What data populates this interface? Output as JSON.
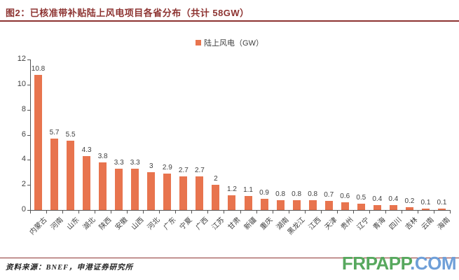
{
  "header": {
    "title": "图2：已核准带补贴陆上风电项目各省分布（共计 58GW）"
  },
  "legend": {
    "label": "陆上风电（GW）"
  },
  "chart_data": {
    "type": "bar",
    "title": "已核准带补贴陆上风电项目各省分布（共计 58GW）",
    "xlabel": "",
    "ylabel": "",
    "ylim": [
      0,
      12
    ],
    "yticks": [
      0,
      2,
      4,
      6,
      8,
      10,
      12
    ],
    "grid": false,
    "legend_position": "top-center",
    "legend_entries": [
      "陆上风电（GW）"
    ],
    "categories": [
      "内蒙古",
      "河南",
      "山东",
      "湖北",
      "陕西",
      "安徽",
      "山西",
      "河北",
      "广东",
      "宁夏",
      "广西",
      "江苏",
      "甘肃",
      "新疆",
      "重庆",
      "湖南",
      "黑龙江",
      "江西",
      "天津",
      "贵州",
      "辽宁",
      "青海",
      "四川",
      "吉林",
      "云南",
      "海南"
    ],
    "values": [
      10.8,
      5.7,
      5.5,
      4.3,
      3.8,
      3.3,
      3.3,
      3,
      2.9,
      2.7,
      2.7,
      2,
      1.2,
      1.1,
      0.9,
      0.8,
      0.8,
      0.8,
      0.7,
      0.6,
      0.5,
      0.4,
      0.4,
      0.2,
      0.1,
      0.1
    ]
  },
  "footer": {
    "source": "资料来源：BNEF，申港证券研究所",
    "watermark": {
      "part1": "FRPAPP",
      "part2": ".COM"
    }
  },
  "colors": {
    "accent_red": "#8D3331",
    "bar": "#E8744E",
    "axis": "#555555",
    "text": "#3F3F3F",
    "watermark_green": "#57A85E",
    "watermark_blue": "#6F9FD8"
  }
}
